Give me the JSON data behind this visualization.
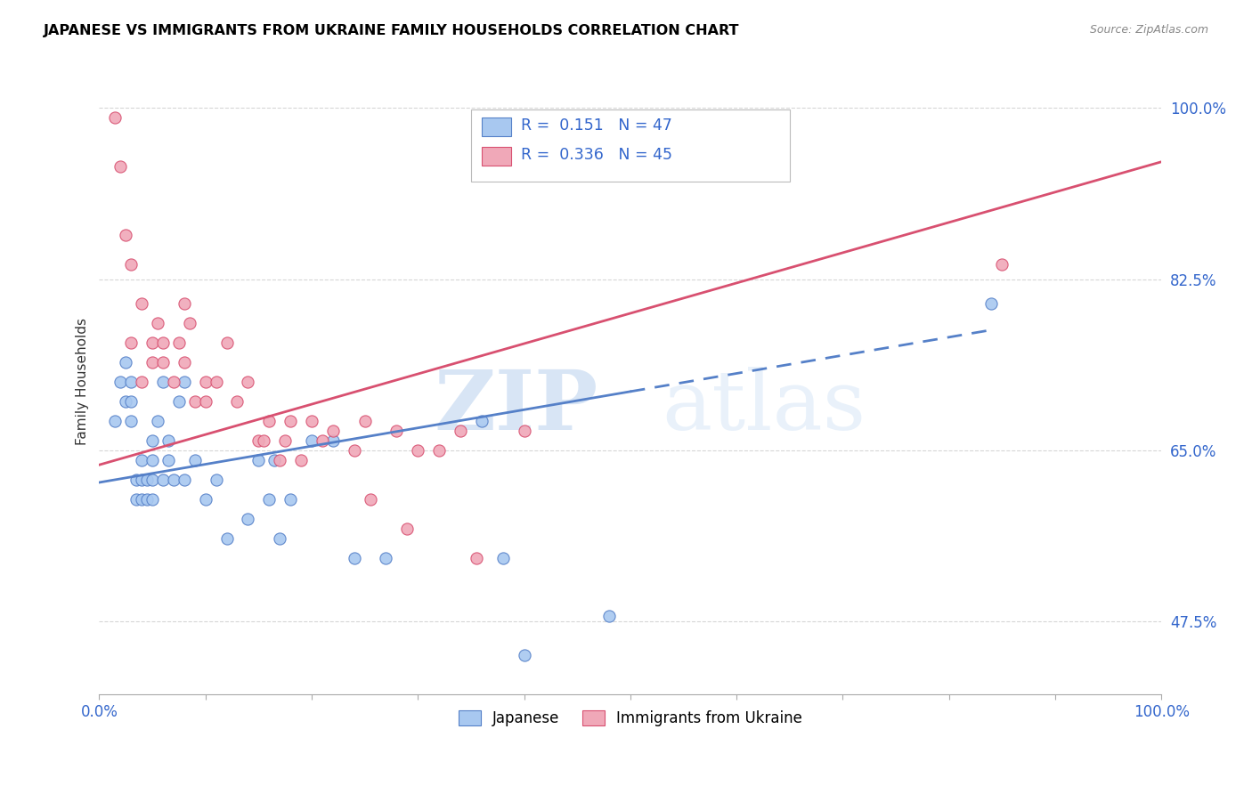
{
  "title": "JAPANESE VS IMMIGRANTS FROM UKRAINE FAMILY HOUSEHOLDS CORRELATION CHART",
  "source": "Source: ZipAtlas.com",
  "ylabel": "Family Households",
  "x_min": 0.0,
  "x_max": 1.0,
  "y_min": 0.4,
  "y_max": 1.04,
  "y_ticks": [
    0.475,
    0.65,
    0.825,
    1.0
  ],
  "y_tick_labels": [
    "47.5%",
    "65.0%",
    "82.5%",
    "100.0%"
  ],
  "x_tick_labels": [
    "0.0%",
    "",
    "",
    "",
    "",
    "",
    "",
    "",
    "",
    "",
    "100.0%"
  ],
  "legend_R_japanese": "0.151",
  "legend_N_japanese": "47",
  "legend_R_ukraine": "0.336",
  "legend_N_ukraine": "45",
  "color_japanese": "#a8c8f0",
  "color_ukraine": "#f0a8b8",
  "color_japanese_line": "#5580c8",
  "color_ukraine_line": "#d85070",
  "watermark_zip": "ZIP",
  "watermark_atlas": "atlas",
  "japanese_line_x0": 0.0,
  "japanese_line_y0": 0.617,
  "japanese_line_x1": 0.5,
  "japanese_line_y1": 0.71,
  "japanese_line_x1_dash": 0.5,
  "japanese_line_y1_dash": 0.71,
  "japanese_line_x2": 0.84,
  "japanese_line_y2": 0.773,
  "ukraine_line_x0": 0.0,
  "ukraine_line_y0": 0.635,
  "ukraine_line_x1": 1.0,
  "ukraine_line_y1": 0.945,
  "japanese_x": [
    0.015,
    0.02,
    0.025,
    0.025,
    0.03,
    0.03,
    0.03,
    0.035,
    0.035,
    0.04,
    0.04,
    0.04,
    0.045,
    0.045,
    0.05,
    0.05,
    0.05,
    0.05,
    0.055,
    0.06,
    0.06,
    0.065,
    0.065,
    0.07,
    0.075,
    0.08,
    0.08,
    0.09,
    0.1,
    0.11,
    0.12,
    0.14,
    0.15,
    0.16,
    0.165,
    0.17,
    0.18,
    0.2,
    0.22,
    0.24,
    0.27,
    0.36,
    0.38,
    0.48,
    0.5,
    0.84,
    0.4
  ],
  "japanese_y": [
    0.68,
    0.72,
    0.7,
    0.74,
    0.68,
    0.7,
    0.72,
    0.6,
    0.62,
    0.6,
    0.62,
    0.64,
    0.6,
    0.62,
    0.6,
    0.62,
    0.64,
    0.66,
    0.68,
    0.62,
    0.72,
    0.64,
    0.66,
    0.62,
    0.7,
    0.62,
    0.72,
    0.64,
    0.6,
    0.62,
    0.56,
    0.58,
    0.64,
    0.6,
    0.64,
    0.56,
    0.6,
    0.66,
    0.66,
    0.54,
    0.54,
    0.68,
    0.54,
    0.48,
    0.96,
    0.8,
    0.44
  ],
  "ukraine_x": [
    0.015,
    0.02,
    0.025,
    0.03,
    0.03,
    0.04,
    0.04,
    0.05,
    0.05,
    0.055,
    0.06,
    0.06,
    0.07,
    0.075,
    0.08,
    0.08,
    0.085,
    0.09,
    0.1,
    0.1,
    0.11,
    0.12,
    0.13,
    0.14,
    0.15,
    0.155,
    0.16,
    0.17,
    0.175,
    0.18,
    0.19,
    0.2,
    0.21,
    0.22,
    0.24,
    0.25,
    0.255,
    0.28,
    0.29,
    0.3,
    0.32,
    0.34,
    0.355,
    0.4,
    0.85
  ],
  "ukraine_y": [
    0.99,
    0.94,
    0.87,
    0.84,
    0.76,
    0.72,
    0.8,
    0.76,
    0.74,
    0.78,
    0.74,
    0.76,
    0.72,
    0.76,
    0.74,
    0.8,
    0.78,
    0.7,
    0.7,
    0.72,
    0.72,
    0.76,
    0.7,
    0.72,
    0.66,
    0.66,
    0.68,
    0.64,
    0.66,
    0.68,
    0.64,
    0.68,
    0.66,
    0.67,
    0.65,
    0.68,
    0.6,
    0.67,
    0.57,
    0.65,
    0.65,
    0.67,
    0.54,
    0.67,
    0.84
  ]
}
